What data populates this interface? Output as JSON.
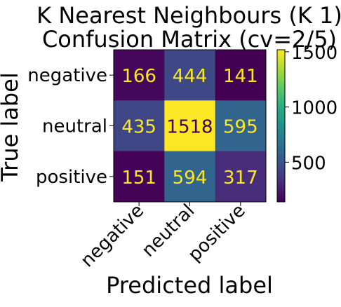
{
  "chart_data": {
    "type": "heatmap",
    "title_lines": [
      "K Nearest Neighbours (K 1)",
      "Confusion Matrix (cv=2/5)"
    ],
    "xlabel": "Predicted label",
    "ylabel": "True label",
    "x_categories": [
      "negative",
      "neutral",
      "positive"
    ],
    "y_categories": [
      "negative",
      "neutral",
      "positive"
    ],
    "values": [
      [
        166,
        444,
        141
      ],
      [
        435,
        1518,
        595
      ],
      [
        151,
        594,
        317
      ]
    ],
    "colormap": "viridis",
    "vmin": 141,
    "vmax": 1518,
    "colorbar_ticks": [
      500,
      1000,
      1500
    ],
    "x_tick_rotation_deg": 45,
    "low_value_text_color": "#fde725",
    "high_value_text_color": "#440154"
  }
}
